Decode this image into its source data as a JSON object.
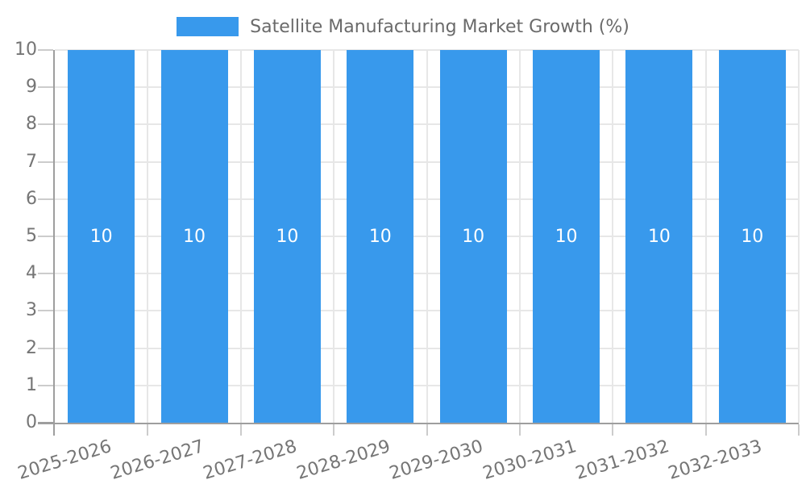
{
  "chart_data": {
    "type": "bar",
    "title": "Satellite Manufacturing Market Growth (%)",
    "categories": [
      "2025-2026",
      "2026-2027",
      "2027-2028",
      "2028-2029",
      "2029-2030",
      "2030-2031",
      "2031-2032",
      "2032-2033"
    ],
    "values": [
      10,
      10,
      10,
      10,
      10,
      10,
      10,
      10
    ],
    "bar_labels": [
      "10",
      "10",
      "10",
      "10",
      "10",
      "10",
      "10",
      "10"
    ],
    "xlabel": "",
    "ylabel": "",
    "ylim": [
      0,
      10
    ],
    "yticks": [
      0,
      1,
      2,
      3,
      4,
      5,
      6,
      7,
      8,
      9,
      10
    ],
    "grid": true,
    "legend_position": "top",
    "x_label_rotation_deg": -17,
    "colors": {
      "bar": "#3899EC",
      "bar_label": "#FFFFFF",
      "grid": "#E7E7E7",
      "axis": "#9E9E9E",
      "tick": "#CCCCCC",
      "tick_label": "#757575",
      "legend_text": "#6A6A6A",
      "background": "#FFFFFF"
    }
  }
}
